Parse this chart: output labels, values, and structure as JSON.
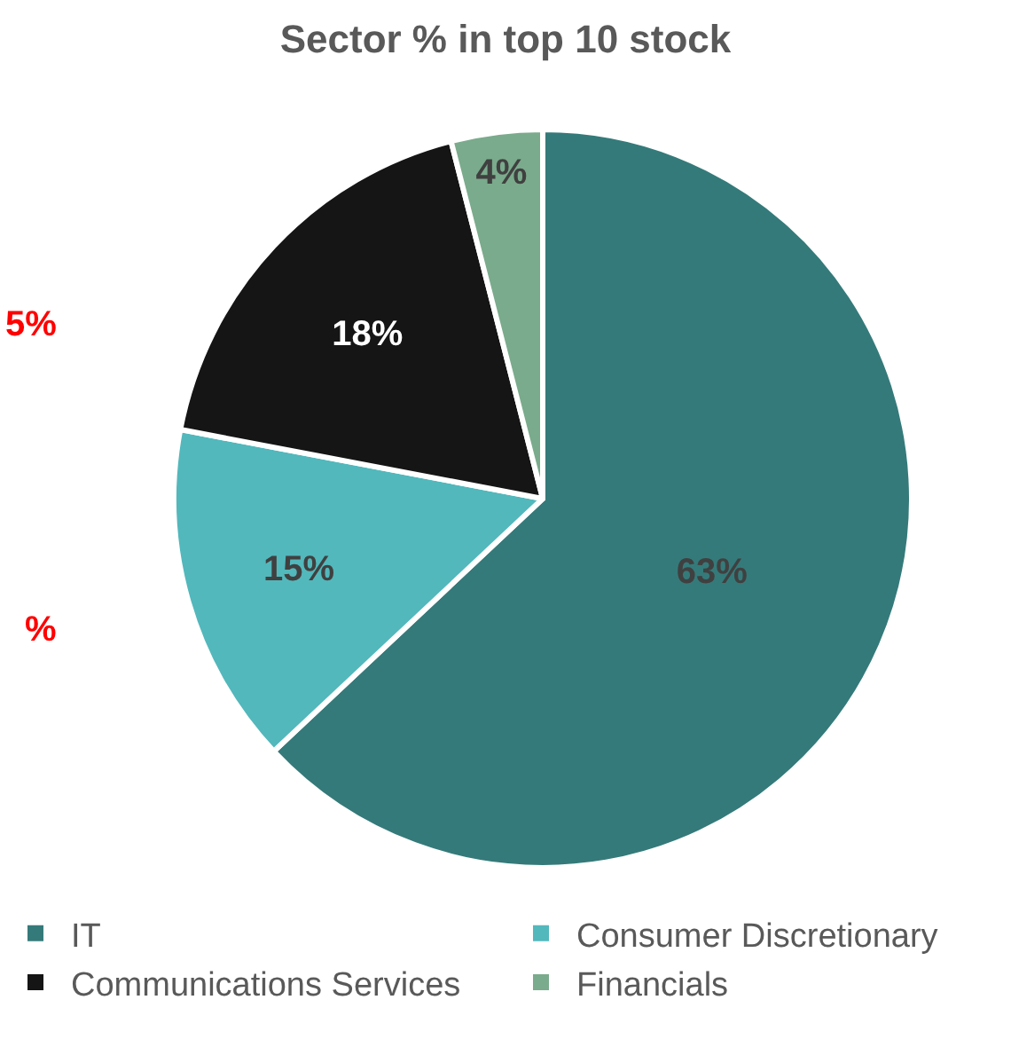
{
  "chart_data": {
    "type": "pie",
    "title": "Sector % in top 10 stock",
    "categories": [
      "IT",
      "Consumer Discretionary",
      "Communications Services",
      "Financials"
    ],
    "values": [
      63,
      15,
      18,
      4
    ],
    "colors": [
      "#357a7a",
      "#52b8bc",
      "#151515",
      "#7aab8c"
    ],
    "value_labels": [
      "63%",
      "15%",
      "18%",
      "4%"
    ],
    "legend": "bottom",
    "annotations": [
      "5%",
      "%"
    ]
  }
}
